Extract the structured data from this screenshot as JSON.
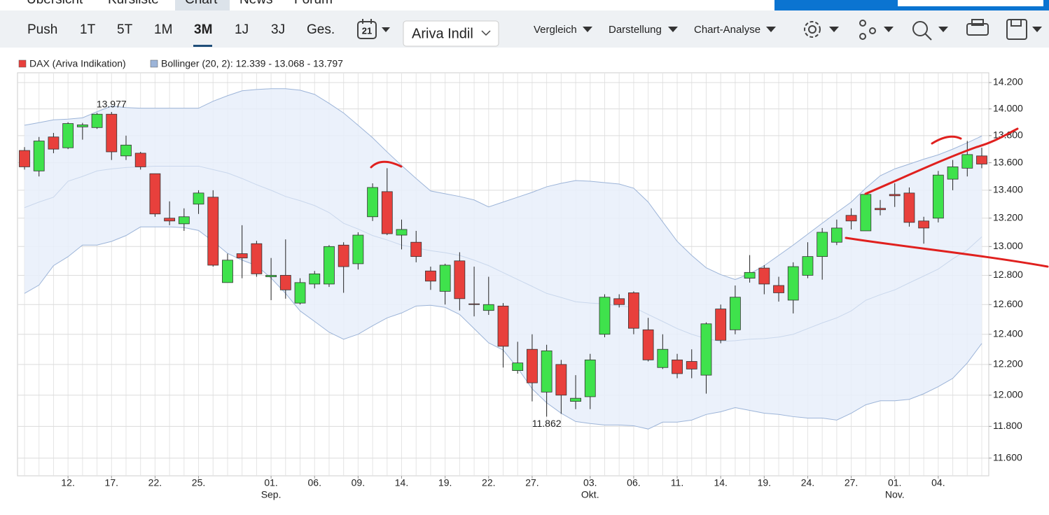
{
  "nav": {
    "tabs": [
      "Übersicht",
      "Kursliste",
      "Chart",
      "News",
      "Forum"
    ],
    "active_tab": 2
  },
  "toolbar": {
    "ranges": [
      "Push",
      "1T",
      "5T",
      "1M",
      "3M",
      "1J",
      "3J",
      "Ges."
    ],
    "active_range": 4,
    "calendar": "21",
    "source_select": "Ariva Indil",
    "menus": [
      "Vergleich",
      "Darstellung",
      "Chart-Analyse"
    ]
  },
  "chart_data": {
    "type": "candlestick",
    "log_y": true,
    "grid": true,
    "categories": [
      null,
      null,
      null,
      "12.",
      null,
      null,
      "17.",
      null,
      null,
      "22.",
      null,
      null,
      "25.",
      null,
      null,
      null,
      null,
      "01.",
      null,
      null,
      "06.",
      null,
      null,
      "09.",
      null,
      null,
      "14.",
      null,
      null,
      "19.",
      null,
      null,
      "22.",
      null,
      null,
      "27.",
      null,
      null,
      null,
      "03.",
      null,
      null,
      "06.",
      null,
      null,
      "11.",
      null,
      null,
      "14.",
      null,
      null,
      "19.",
      null,
      null,
      "24.",
      null,
      null,
      "27.",
      null,
      null,
      "01.",
      null,
      null,
      "04.",
      null,
      null,
      null
    ],
    "month_labels": [
      null,
      null,
      null,
      null,
      null,
      null,
      null,
      null,
      null,
      null,
      null,
      null,
      null,
      null,
      null,
      null,
      null,
      "Sep.",
      null,
      null,
      null,
      null,
      null,
      null,
      null,
      null,
      null,
      null,
      null,
      null,
      null,
      null,
      null,
      null,
      null,
      null,
      null,
      null,
      null,
      "Okt.",
      null,
      null,
      null,
      null,
      null,
      null,
      null,
      null,
      null,
      null,
      null,
      null,
      null,
      null,
      null,
      null,
      null,
      null,
      null,
      null,
      "Nov.",
      null,
      null,
      null,
      null,
      null,
      null
    ],
    "series": [
      {
        "name": "DAX (Ariva Indikation)",
        "up_color": "#3fe24c",
        "down_color": "#e8403c",
        "legend_color": "#e8403c",
        "open": [
          13690,
          13540,
          13790,
          13710,
          13865,
          13860,
          13960,
          13650,
          13670,
          13520,
          13200,
          13160,
          13300,
          13350,
          12750,
          12950,
          13020,
          12790,
          12800,
          12610,
          12740,
          12740,
          13010,
          12880,
          13210,
          13390,
          13080,
          13030,
          12830,
          12690,
          12900,
          12605,
          12560,
          12590,
          12160,
          12300,
          12020,
          12200,
          11960,
          11990,
          12400,
          12640,
          12680,
          12430,
          12180,
          12230,
          12220,
          12130,
          12570,
          12430,
          12780,
          12850,
          12730,
          12630,
          12800,
          12930,
          13030,
          13220,
          13110,
          13270,
          13370,
          13380,
          13180,
          13200,
          13480,
          13560,
          13650
        ],
        "high": [
          13715,
          13790,
          13820,
          13900,
          13895,
          13970,
          13977,
          13800,
          13680,
          13520,
          13320,
          13270,
          13400,
          13400,
          12950,
          13150,
          13040,
          12920,
          13050,
          12780,
          12830,
          13010,
          13030,
          13100,
          13450,
          13560,
          13190,
          13110,
          12860,
          12880,
          12960,
          12860,
          12790,
          12610,
          12350,
          12400,
          12330,
          12230,
          12130,
          12270,
          12670,
          12670,
          12690,
          12510,
          12400,
          12270,
          12300,
          12480,
          12600,
          12730,
          12940,
          12870,
          12790,
          12890,
          13030,
          13130,
          13190,
          13270,
          13380,
          13330,
          13450,
          13420,
          13210,
          13540,
          13620,
          13760,
          13710
        ],
        "low": [
          13550,
          13500,
          13670,
          13700,
          13770,
          13850,
          13620,
          13620,
          13550,
          13210,
          13150,
          13110,
          13230,
          12860,
          12750,
          12780,
          12790,
          12630,
          12640,
          12600,
          12710,
          12720,
          12680,
          12840,
          13180,
          13080,
          12980,
          12890,
          12700,
          12600,
          12560,
          12520,
          12530,
          12180,
          12140,
          11960,
          11862,
          11880,
          11910,
          11910,
          12380,
          12580,
          12400,
          12220,
          12170,
          12110,
          12110,
          12010,
          12340,
          12400,
          12750,
          12670,
          12620,
          12540,
          12780,
          12770,
          13010,
          13120,
          13110,
          13220,
          13280,
          13140,
          13020,
          13170,
          13400,
          13500,
          13560
        ],
        "close": [
          13570,
          13760,
          13700,
          13890,
          13880,
          13960,
          13680,
          13730,
          13570,
          13230,
          13180,
          13210,
          13380,
          12870,
          12905,
          12920,
          12810,
          12800,
          12700,
          12750,
          12810,
          13000,
          12860,
          13080,
          13420,
          13090,
          13120,
          12930,
          12760,
          12870,
          12640,
          12600,
          12600,
          12320,
          12210,
          12080,
          12290,
          12000,
          11980,
          12230,
          12650,
          12600,
          12440,
          12230,
          12300,
          12140,
          12170,
          12470,
          12360,
          12650,
          12820,
          12740,
          12680,
          12860,
          12930,
          13100,
          13130,
          13180,
          13370,
          13260,
          13360,
          13170,
          13130,
          13510,
          13570,
          13660,
          13590
        ]
      }
    ],
    "bands": {
      "name": "Bollinger (20, 2): 12.339 - 13.068 - 13.797",
      "color": "#9cb4d8",
      "fill": "#e8eefa",
      "middle_color": "#c9d7ec",
      "upper": [
        13877,
        13897,
        13918,
        13923,
        13933,
        13979,
        14021,
        14010,
        14005,
        14005,
        14005,
        14005,
        14005,
        14058,
        14100,
        14137,
        14147,
        14153,
        14153,
        14142,
        14110,
        14042,
        13969,
        13877,
        13784,
        13679,
        13580,
        13485,
        13395,
        13375,
        13355,
        13330,
        13280,
        13315,
        13350,
        13385,
        13425,
        13450,
        13470,
        13465,
        13455,
        13445,
        13415,
        13315,
        13174,
        13036,
        12938,
        12852,
        12805,
        12771,
        12810,
        12867,
        12938,
        13010,
        13087,
        13164,
        13240,
        13315,
        13415,
        13505,
        13555,
        13590,
        13626,
        13658,
        13700,
        13747,
        13797
      ],
      "middle": [
        13275,
        13315,
        13350,
        13465,
        13500,
        13540,
        13555,
        13565,
        13570,
        13575,
        13575,
        13575,
        13575,
        13550,
        13525,
        13485,
        13440,
        13400,
        13355,
        13325,
        13290,
        13240,
        13164,
        13123,
        13077,
        13046,
        13010,
        12990,
        12971,
        12957,
        12938,
        12905,
        12867,
        12819,
        12771,
        12724,
        12676,
        12648,
        12619,
        12610,
        12605,
        12590,
        12581,
        12533,
        12486,
        12438,
        12400,
        12371,
        12352,
        12357,
        12367,
        12371,
        12381,
        12400,
        12438,
        12476,
        12510,
        12557,
        12629,
        12667,
        12700,
        12748,
        12795,
        12843,
        12914,
        12976,
        13068
      ],
      "lower": [
        12676,
        12733,
        12867,
        12929,
        13010,
        13010,
        13036,
        13077,
        13138,
        13138,
        13138,
        13133,
        13113,
        13036,
        12952,
        12905,
        12867,
        12781,
        12676,
        12557,
        12486,
        12414,
        12367,
        12400,
        12457,
        12510,
        12543,
        12590,
        12595,
        12581,
        12533,
        12438,
        12343,
        12295,
        12177,
        12041,
        11951,
        11884,
        11831,
        11818,
        11809,
        11809,
        11804,
        11783,
        11827,
        11827,
        11840,
        11876,
        11893,
        11920,
        11902,
        11884,
        11876,
        11862,
        11853,
        11853,
        11840,
        11884,
        11938,
        11964,
        11964,
        11973,
        12009,
        12055,
        12109,
        12210,
        12339
      ]
    },
    "annotations": [
      {
        "value": 13977,
        "label": "13.977",
        "of": "high"
      },
      {
        "value": 11862,
        "label": "11.862",
        "of": "low"
      }
    ],
    "ylim": [
      11490,
      14275
    ],
    "yticks": [
      {
        "value": 11600,
        "label": "11.600"
      },
      {
        "value": 11800,
        "label": "11.800"
      },
      {
        "value": 12000,
        "label": "12.000"
      },
      {
        "value": 12200,
        "label": "12.200"
      },
      {
        "value": 12400,
        "label": "12.400"
      },
      {
        "value": 12600,
        "label": "12.600"
      },
      {
        "value": 12800,
        "label": "12.800"
      },
      {
        "value": 13000,
        "label": "13.000"
      },
      {
        "value": 13200,
        "label": "13.200"
      },
      {
        "value": 13400,
        "label": "13.400"
      },
      {
        "value": 13600,
        "label": "13.600"
      },
      {
        "value": 13800,
        "label": "13.800"
      },
      {
        "value": 14000,
        "label": "14.000"
      },
      {
        "value": 14200,
        "label": "14.200"
      }
    ]
  }
}
